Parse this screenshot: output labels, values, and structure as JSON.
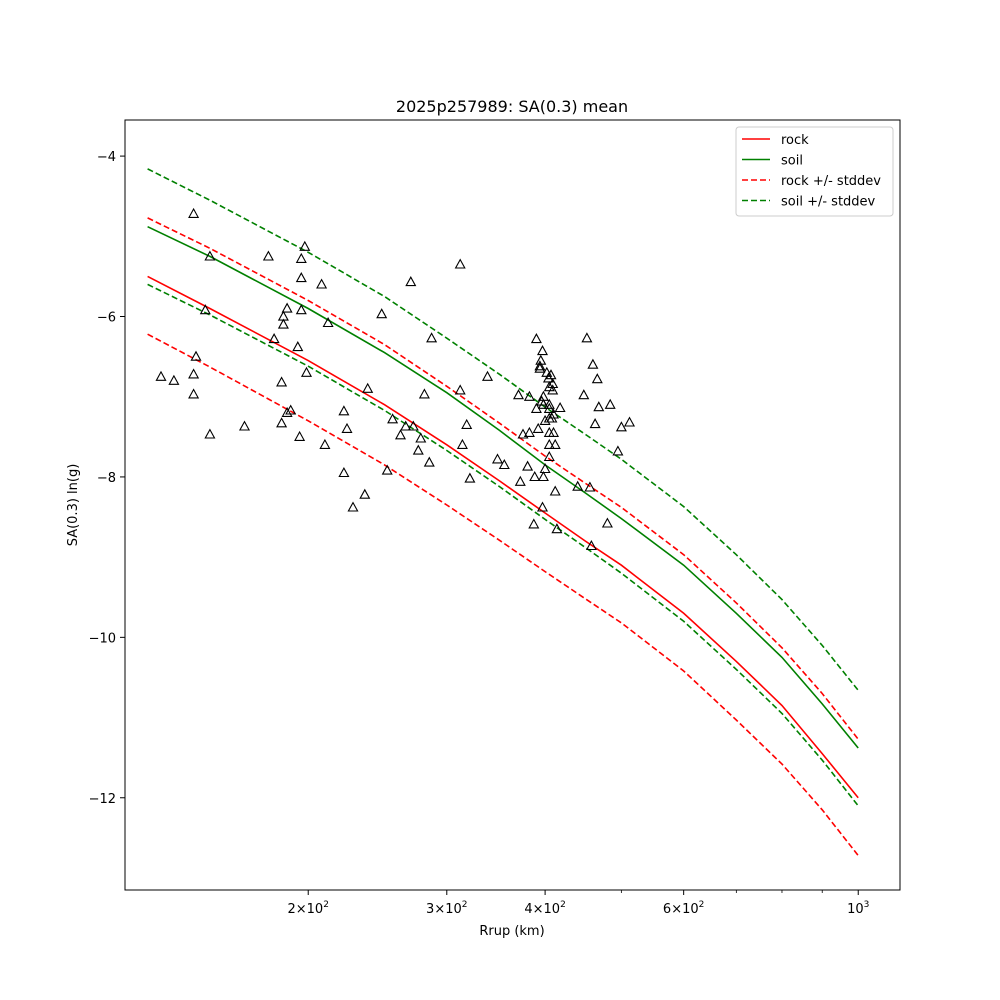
{
  "chart_data": {
    "type": "line",
    "title": "2025p257989: SA(0.3) mean",
    "xlabel": "Rrup (km)",
    "ylabel": "SA(0.3) ln(g)",
    "xscale": "log",
    "xlim": [
      117,
      1130
    ],
    "ylim": [
      -13.15,
      -3.55
    ],
    "x_ticks": [
      {
        "value": 200,
        "mantissa": "2",
        "exp": "2"
      },
      {
        "value": 300,
        "mantissa": "3",
        "exp": "2"
      },
      {
        "value": 400,
        "mantissa": "4",
        "exp": "2"
      },
      {
        "value": 600,
        "mantissa": "6",
        "exp": "2"
      },
      {
        "value": 1000,
        "mantissa": "",
        "exp": "3"
      }
    ],
    "x_minor_ticks": [
      500,
      700,
      800,
      900
    ],
    "y_ticks": [
      {
        "value": -4,
        "label": "−4"
      },
      {
        "value": -6,
        "label": "−6"
      },
      {
        "value": -8,
        "label": "−8"
      },
      {
        "value": -10,
        "label": "−10"
      },
      {
        "value": -12,
        "label": "−12"
      }
    ],
    "grid": false,
    "legend_position": "top-right",
    "series": [
      {
        "name": "rock",
        "color": "#ff0000",
        "style": "solid",
        "x": [
          125,
          150,
          200,
          250,
          300,
          350,
          400,
          450,
          500,
          600,
          700,
          800,
          900,
          1000
        ],
        "y": [
          -5.5,
          -5.9,
          -6.55,
          -7.1,
          -7.6,
          -8.05,
          -8.45,
          -8.8,
          -9.1,
          -9.7,
          -10.3,
          -10.85,
          -11.45,
          -12.0
        ]
      },
      {
        "name": "soil",
        "color": "#008000",
        "style": "solid",
        "x": [
          125,
          150,
          200,
          250,
          300,
          350,
          400,
          450,
          500,
          600,
          700,
          800,
          900,
          1000
        ],
        "y": [
          -4.88,
          -5.25,
          -5.9,
          -6.45,
          -6.95,
          -7.42,
          -7.85,
          -8.2,
          -8.52,
          -9.1,
          -9.7,
          -10.25,
          -10.83,
          -11.38
        ]
      },
      {
        "name": "rock +/- stddev",
        "color": "#ff0000",
        "style": "dashed",
        "x": [
          125,
          150,
          200,
          250,
          300,
          350,
          400,
          450,
          500,
          600,
          700,
          800,
          900,
          1000
        ],
        "y": [
          -4.77,
          -5.15,
          -5.8,
          -6.35,
          -6.87,
          -7.33,
          -7.74,
          -8.08,
          -8.38,
          -8.97,
          -9.57,
          -10.13,
          -10.7,
          -11.27
        ]
      },
      {
        "name": "",
        "color": "#ff0000",
        "style": "dashed",
        "x": [
          125,
          150,
          200,
          250,
          300,
          350,
          400,
          450,
          500,
          600,
          700,
          800,
          900,
          1000
        ],
        "y": [
          -6.22,
          -6.63,
          -7.3,
          -7.85,
          -8.35,
          -8.79,
          -9.18,
          -9.52,
          -9.82,
          -10.42,
          -11.03,
          -11.58,
          -12.15,
          -12.72
        ]
      },
      {
        "name": "soil +/- stddev",
        "color": "#008000",
        "style": "dashed",
        "x": [
          125,
          150,
          200,
          250,
          300,
          350,
          400,
          450,
          500,
          600,
          700,
          800,
          900,
          1000
        ],
        "y": [
          -4.16,
          -4.55,
          -5.2,
          -5.75,
          -6.27,
          -6.72,
          -7.13,
          -7.47,
          -7.78,
          -8.37,
          -8.97,
          -9.53,
          -10.1,
          -10.66
        ]
      },
      {
        "name": "",
        "color": "#008000",
        "style": "dashed",
        "x": [
          125,
          150,
          200,
          250,
          300,
          350,
          400,
          450,
          500,
          600,
          700,
          800,
          900,
          1000
        ],
        "y": [
          -5.6,
          -5.98,
          -6.62,
          -7.17,
          -7.67,
          -8.12,
          -8.53,
          -8.88,
          -9.2,
          -9.8,
          -10.4,
          -10.95,
          -11.53,
          -12.1
        ]
      }
    ],
    "observations": {
      "marker": "triangle",
      "points": [
        [
          143,
          -4.72
        ],
        [
          150,
          -5.25
        ],
        [
          178,
          -5.25
        ],
        [
          198,
          -5.13
        ],
        [
          196,
          -5.28
        ],
        [
          196,
          -5.52
        ],
        [
          208,
          -5.6
        ],
        [
          188,
          -5.9
        ],
        [
          196,
          -5.92
        ],
        [
          186,
          -6.0
        ],
        [
          186,
          -6.1
        ],
        [
          212,
          -6.08
        ],
        [
          181,
          -6.28
        ],
        [
          194,
          -6.38
        ],
        [
          199,
          -6.7
        ],
        [
          185,
          -6.82
        ],
        [
          148,
          -5.92
        ],
        [
          144,
          -6.5
        ],
        [
          130,
          -6.75
        ],
        [
          135,
          -6.8
        ],
        [
          143,
          -6.72
        ],
        [
          143,
          -6.97
        ],
        [
          150,
          -7.47
        ],
        [
          166,
          -7.37
        ],
        [
          190,
          -7.17
        ],
        [
          188,
          -7.2
        ],
        [
          185,
          -7.33
        ],
        [
          195,
          -7.5
        ],
        [
          210,
          -7.6
        ],
        [
          222,
          -7.18
        ],
        [
          224,
          -7.4
        ],
        [
          238,
          -6.9
        ],
        [
          222,
          -7.95
        ],
        [
          236,
          -8.22
        ],
        [
          228,
          -8.38
        ],
        [
          252,
          -7.92
        ],
        [
          256,
          -7.28
        ],
        [
          262,
          -7.48
        ],
        [
          266,
          -7.37
        ],
        [
          272,
          -7.37
        ],
        [
          278,
          -7.52
        ],
        [
          276,
          -7.67
        ],
        [
          281,
          -6.97
        ],
        [
          285,
          -7.82
        ],
        [
          248,
          -5.97
        ],
        [
          270,
          -5.57
        ],
        [
          287,
          -6.27
        ],
        [
          312,
          -5.35
        ],
        [
          312,
          -6.92
        ],
        [
          314,
          -7.6
        ],
        [
          318,
          -7.35
        ],
        [
          321,
          -8.02
        ],
        [
          338,
          -6.75
        ],
        [
          348,
          -7.78
        ],
        [
          355,
          -7.85
        ],
        [
          370,
          -6.98
        ],
        [
          372,
          -8.06
        ],
        [
          375,
          -7.47
        ],
        [
          380,
          -7.87
        ],
        [
          382,
          -7.0
        ],
        [
          382,
          -7.45
        ],
        [
          390,
          -7.15
        ],
        [
          387,
          -8.59
        ],
        [
          388,
          -8.0
        ],
        [
          392,
          -7.4
        ],
        [
          390,
          -6.28
        ],
        [
          394,
          -6.62
        ],
        [
          395,
          -6.55
        ],
        [
          397,
          -6.43
        ],
        [
          394,
          -6.65
        ],
        [
          398,
          -7.0
        ],
        [
          396,
          -7.06
        ],
        [
          398,
          -7.1
        ],
        [
          400,
          -7.3
        ],
        [
          400,
          -7.9
        ],
        [
          397,
          -8.38
        ],
        [
          398,
          -8.0
        ],
        [
          402,
          -6.7
        ],
        [
          404,
          -6.77
        ],
        [
          405,
          -6.88
        ],
        [
          405,
          -7.1
        ],
        [
          405,
          -7.15
        ],
        [
          405,
          -7.27
        ],
        [
          405,
          -7.45
        ],
        [
          405,
          -7.6
        ],
        [
          405,
          -7.75
        ],
        [
          407,
          -6.73
        ],
        [
          409,
          -6.84
        ],
        [
          409,
          -6.92
        ],
        [
          410,
          -7.22
        ],
        [
          410,
          -7.45
        ],
        [
          412,
          -7.6
        ],
        [
          412,
          -8.18
        ],
        [
          414,
          -8.65
        ],
        [
          408,
          -7.27
        ],
        [
          418,
          -7.14
        ],
        [
          440,
          -8.12
        ],
        [
          448,
          -6.98
        ],
        [
          452,
          -6.27
        ],
        [
          456,
          -8.13
        ],
        [
          458,
          -8.86
        ],
        [
          460,
          -6.6
        ],
        [
          463,
          -7.34
        ],
        [
          466,
          -6.78
        ],
        [
          468,
          -7.13
        ],
        [
          480,
          -8.58
        ],
        [
          484,
          -7.1
        ],
        [
          495,
          -7.68
        ],
        [
          500,
          -7.38
        ],
        [
          512,
          -7.32
        ]
      ]
    }
  }
}
